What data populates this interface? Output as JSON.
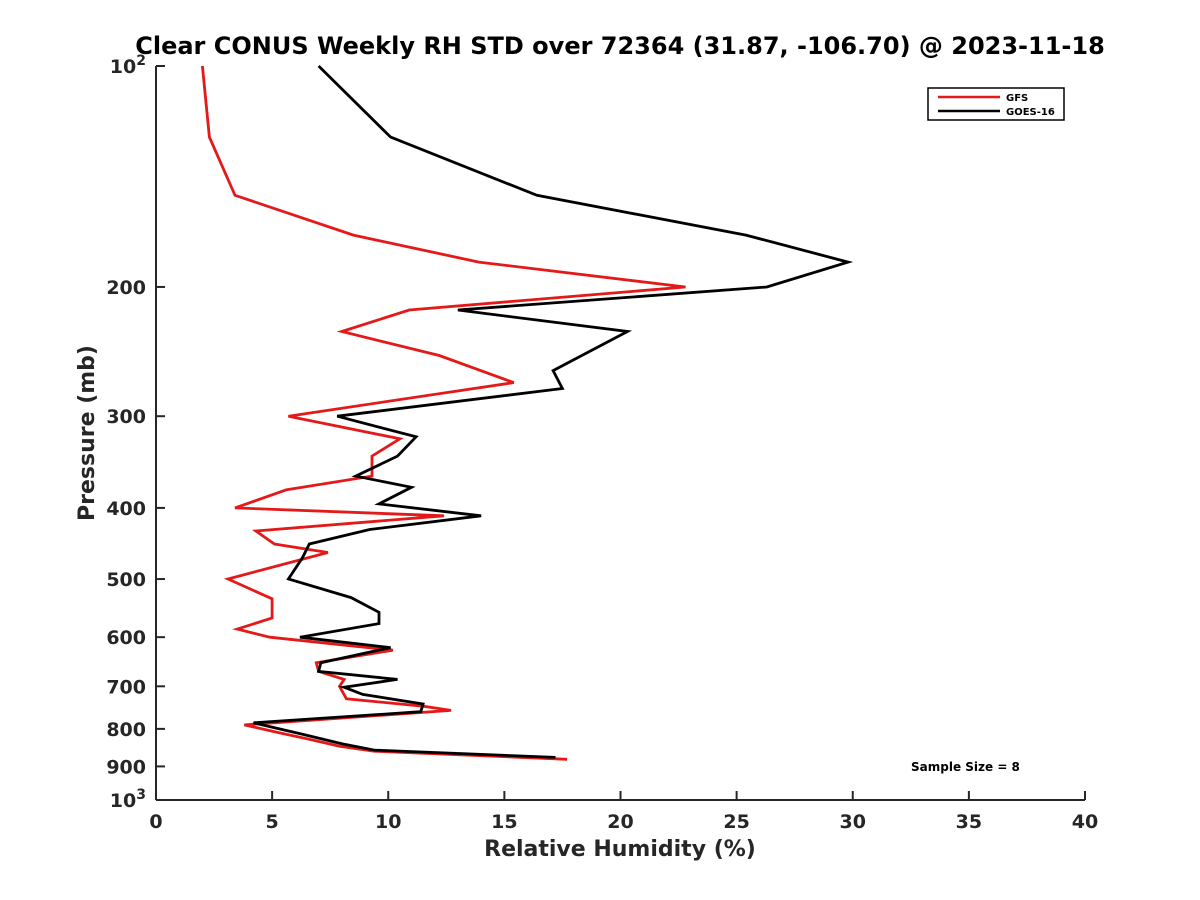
{
  "chart_data": {
    "type": "line",
    "title": "Clear CONUS Weekly RH STD over 72364 (31.87, -106.70) @ 2023-11-18",
    "xlabel": "Relative Humidity (%)",
    "ylabel": "Pressure (mb)",
    "xlim": [
      0,
      40
    ],
    "ylim": [
      100,
      1000
    ],
    "y_scale": "log",
    "y_reversed": true,
    "grid": false,
    "legend_position": "top-right",
    "x_ticks": [
      0,
      5,
      10,
      15,
      20,
      25,
      30,
      35,
      40
    ],
    "y_ticks": [
      {
        "value": 100,
        "base": "10",
        "exp": "2"
      },
      {
        "value": 200,
        "label": "200"
      },
      {
        "value": 300,
        "label": "300"
      },
      {
        "value": 400,
        "label": "400"
      },
      {
        "value": 500,
        "label": "500"
      },
      {
        "value": 600,
        "label": "600"
      },
      {
        "value": 700,
        "label": "700"
      },
      {
        "value": 800,
        "label": "800"
      },
      {
        "value": 900,
        "label": "900"
      },
      {
        "value": 1000,
        "base": "10",
        "exp": "3"
      }
    ],
    "annotation": "Sample Size = 8",
    "series": [
      {
        "name": "GFS",
        "color": "#e41a1a",
        "points": [
          [
            2.0,
            100
          ],
          [
            2.3,
            125
          ],
          [
            3.4,
            150
          ],
          [
            8.5,
            170
          ],
          [
            13.9,
            185
          ],
          [
            22.8,
            200
          ],
          [
            10.9,
            215
          ],
          [
            8.0,
            230
          ],
          [
            12.2,
            248
          ],
          [
            15.4,
            270
          ],
          [
            5.7,
            300
          ],
          [
            10.5,
            322
          ],
          [
            9.3,
            340
          ],
          [
            9.3,
            362
          ],
          [
            5.6,
            378
          ],
          [
            3.4,
            400
          ],
          [
            12.4,
            410
          ],
          [
            4.3,
            430
          ],
          [
            5.1,
            448
          ],
          [
            7.4,
            460
          ],
          [
            3.1,
            500
          ],
          [
            5.0,
            532
          ],
          [
            5.0,
            565
          ],
          [
            3.5,
            585
          ],
          [
            4.9,
            600
          ],
          [
            10.2,
            625
          ],
          [
            6.9,
            650
          ],
          [
            7.0,
            668
          ],
          [
            8.1,
            685
          ],
          [
            7.9,
            700
          ],
          [
            8.2,
            728
          ],
          [
            11.5,
            745
          ],
          [
            12.7,
            755
          ],
          [
            3.8,
            790
          ],
          [
            5.3,
            810
          ],
          [
            6.5,
            825
          ],
          [
            7.9,
            845
          ],
          [
            9.4,
            858
          ],
          [
            17.7,
            880
          ]
        ]
      },
      {
        "name": "GOES-16",
        "color": "#000000",
        "points": [
          [
            7.0,
            100
          ],
          [
            10.1,
            125
          ],
          [
            16.4,
            150
          ],
          [
            25.4,
            170
          ],
          [
            29.8,
            185
          ],
          [
            26.3,
            200
          ],
          [
            13.0,
            215
          ],
          [
            20.3,
            230
          ],
          [
            17.1,
            260
          ],
          [
            17.5,
            275
          ],
          [
            7.8,
            300
          ],
          [
            11.2,
            320
          ],
          [
            10.4,
            340
          ],
          [
            8.6,
            362
          ],
          [
            11.0,
            375
          ],
          [
            9.6,
            395
          ],
          [
            14.0,
            410
          ],
          [
            9.2,
            428
          ],
          [
            6.6,
            448
          ],
          [
            6.3,
            468
          ],
          [
            5.7,
            500
          ],
          [
            8.4,
            530
          ],
          [
            9.6,
            555
          ],
          [
            9.6,
            575
          ],
          [
            6.2,
            600
          ],
          [
            10.1,
            620
          ],
          [
            7.1,
            650
          ],
          [
            7.0,
            668
          ],
          [
            10.4,
            685
          ],
          [
            8.1,
            702
          ],
          [
            8.9,
            718
          ],
          [
            11.5,
            740
          ],
          [
            11.4,
            758
          ],
          [
            4.2,
            785
          ],
          [
            6.4,
            815
          ],
          [
            8.0,
            838
          ],
          [
            9.4,
            855
          ],
          [
            17.2,
            875
          ]
        ]
      }
    ]
  }
}
